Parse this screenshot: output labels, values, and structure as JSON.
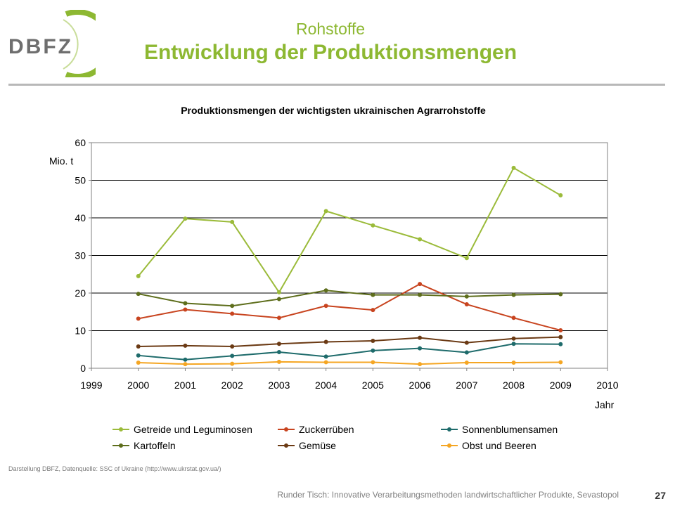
{
  "header": {
    "logo_text": "DBFZ",
    "subtitle": "Rohstoffe",
    "title": "Entwicklung der Produktionsmengen"
  },
  "colors": {
    "brand_green": "#8DB832",
    "rule_gray": "#B8B8B8"
  },
  "chart_data": {
    "type": "line",
    "title": "Produktionsmengen der wichtigsten ukrainischen Agrarrohstoffe",
    "ylabel": "Mio. t",
    "xlabel": "Jahr",
    "xlim": [
      1999,
      2010
    ],
    "ylim": [
      0,
      60
    ],
    "xticks": [
      1999,
      2000,
      2001,
      2002,
      2003,
      2004,
      2005,
      2006,
      2007,
      2008,
      2009,
      2010
    ],
    "yticks": [
      0,
      10,
      20,
      30,
      40,
      50,
      60
    ],
    "grid": true,
    "legend_position": "bottom",
    "x": [
      2000,
      2001,
      2002,
      2003,
      2004,
      2005,
      2006,
      2007,
      2008,
      2009
    ],
    "series": [
      {
        "name": "Getreide und Leguminosen",
        "color": "#9BBB3A",
        "values": [
          24.5,
          39.8,
          38.9,
          20.2,
          41.8,
          38.0,
          34.3,
          29.3,
          53.3,
          46.0
        ]
      },
      {
        "name": "Zuckerrüben",
        "color": "#C8441F",
        "values": [
          13.2,
          15.6,
          14.5,
          13.4,
          16.6,
          15.5,
          22.4,
          17.0,
          13.4,
          10.1
        ]
      },
      {
        "name": "Sonnenblumensamen",
        "color": "#1E6B6B",
        "values": [
          3.4,
          2.3,
          3.3,
          4.3,
          3.1,
          4.7,
          5.3,
          4.2,
          6.5,
          6.4
        ]
      },
      {
        "name": "Kartoffeln",
        "color": "#5E6E1C",
        "values": [
          19.8,
          17.3,
          16.6,
          18.4,
          20.7,
          19.5,
          19.5,
          19.1,
          19.5,
          19.7
        ]
      },
      {
        "name": "Gemüse",
        "color": "#6B3A14",
        "values": [
          5.8,
          6.0,
          5.8,
          6.5,
          7.0,
          7.3,
          8.1,
          6.8,
          7.9,
          8.3
        ]
      },
      {
        "name": "Obst und Beeren",
        "color": "#F5A623",
        "values": [
          1.5,
          1.1,
          1.2,
          1.7,
          1.6,
          1.6,
          1.1,
          1.5,
          1.5,
          1.6
        ]
      }
    ]
  },
  "footer": {
    "source": "Darstellung DBFZ, Datenquelle: SSC of Ukraine (http://www.ukrstat.gov.ua/)",
    "event": "Runder Tisch: Innovative Verarbeitungsmethoden landwirtschaftlicher Produkte, Sevastopol",
    "page_number": "27"
  }
}
